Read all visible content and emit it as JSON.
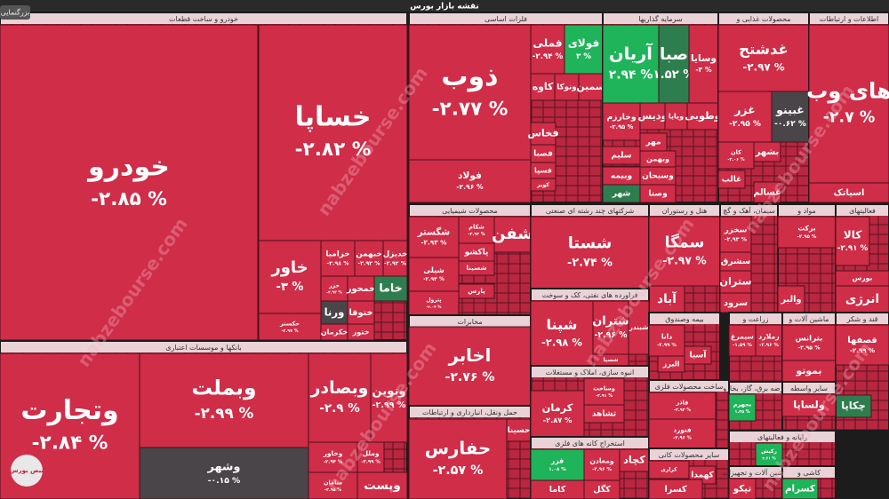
{
  "title": "نقشه بازار بورس",
  "zoom": "بزرگنمایی",
  "watermark": "nabzebourse.com",
  "logo": "نبض بورس",
  "sectors": [
    {
      "name": "خودرو و ساخت قطعات",
      "tiles": [
        {
          "name": "خودرو",
          "change": "-۲.۸۵ %"
        },
        {
          "name": "خساپا",
          "change": "-۲.۸۲ %"
        },
        {
          "name": "خاور",
          "change": "-۳ %"
        },
        {
          "name": "خکستر",
          "change": "-۲.۹۷ %"
        },
        {
          "name": "خزامیا",
          "change": "-۲.۹۸ %"
        },
        {
          "name": "خبهمن",
          "change": "-۲.۹۲ %"
        },
        {
          "name": "خدیزل",
          "change": "-۲.۹۲ %"
        },
        {
          "name": "خزر",
          "change": "-۲.۹۳ %"
        },
        {
          "name": "خمحور"
        },
        {
          "name": "خاما"
        },
        {
          "name": "ورنا"
        },
        {
          "name": "ختوقا"
        },
        {
          "name": "ختور"
        },
        {
          "name": "خکرمان"
        }
      ]
    },
    {
      "name": "بانکها و موسسات اعتباری",
      "tiles": [
        {
          "name": "وتجارت",
          "change": "-۲.۸۴ %"
        },
        {
          "name": "وبملت",
          "change": "-۲.۹۹ %"
        },
        {
          "name": "وشهر",
          "change": "-۰.۱۵ %"
        },
        {
          "name": "وبصادر",
          "change": "-۲.۹ %"
        },
        {
          "name": "ونوین",
          "change": "-۲.۹۹ %"
        },
        {
          "name": "وخاور",
          "change": "-۲.۹۴ %"
        },
        {
          "name": "سامان",
          "change": "-۲.۹۵ %"
        },
        {
          "name": "وملل",
          "change": "-۲.۹۹ %"
        },
        {
          "name": "وپست"
        }
      ]
    },
    {
      "name": "فلزات اساسی",
      "tiles": [
        {
          "name": "ذوب",
          "change": "-۲.۷۷ %"
        },
        {
          "name": "فولاد",
          "change": "-۲.۹۶ %"
        },
        {
          "name": "فملی",
          "change": "-۲.۹۴ %"
        },
        {
          "name": "فولای",
          "change": "۳ %"
        },
        {
          "name": "کاوه"
        },
        {
          "name": "ونوکا"
        },
        {
          "name": "سمین"
        },
        {
          "name": "فخاس"
        },
        {
          "name": "فصبا"
        },
        {
          "name": "فسپا"
        },
        {
          "name": "کویر"
        }
      ]
    },
    {
      "name": "سرمایه گذاریها",
      "tiles": [
        {
          "name": "آریان",
          "change": "۲.۹۴ %"
        },
        {
          "name": "صبا",
          "change": "۱.۵۲ %"
        },
        {
          "name": "وسایا",
          "change": "-۳ %"
        },
        {
          "name": "وخارزم",
          "change": "-۲.۹۵ %"
        },
        {
          "name": "ودیس"
        },
        {
          "name": "ویایا"
        },
        {
          "name": "وطوبی"
        },
        {
          "name": "مهر"
        },
        {
          "name": "سلیم"
        },
        {
          "name": "وبهمن"
        },
        {
          "name": "وبیمه"
        },
        {
          "name": "وسبحان"
        },
        {
          "name": "شهر"
        },
        {
          "name": "وصنا"
        }
      ]
    },
    {
      "name": "محصولات غذایی و",
      "tiles": [
        {
          "name": "غدشتح",
          "change": "-۲.۹۷ %"
        },
        {
          "name": "غزر",
          "change": "-۲.۹۵ %"
        },
        {
          "name": "غبینو",
          "change": "-۰.۶۲ %"
        },
        {
          "name": "کان",
          "change": "-۲.۰۶ %"
        },
        {
          "name": "بشهر"
        },
        {
          "name": "غالب"
        },
        {
          "name": "غسالم"
        }
      ]
    },
    {
      "name": "اطلاعات و ارتباطات",
      "tiles": [
        {
          "name": "های وب",
          "change": "-۲.۷ %"
        },
        {
          "name": "اسیاتک"
        }
      ]
    },
    {
      "name": "محصولات شیمیایی",
      "tiles": [
        {
          "name": "شگستر",
          "change": "-۲.۹۳ %"
        },
        {
          "name": "شکام",
          "change": "-۲.۹۳ %"
        },
        {
          "name": "شفن"
        },
        {
          "name": "پاکشو"
        },
        {
          "name": "شیلی",
          "change": "-۲.۹۴ %"
        },
        {
          "name": "شسینا"
        },
        {
          "name": "پترول",
          "change": "-۲.۰۴ %"
        },
        {
          "name": "پارس"
        }
      ]
    },
    {
      "name": "شرکتهای چند رشته ای صنعتی",
      "tiles": [
        {
          "name": "شستا",
          "change": "-۲.۷۴ %"
        }
      ]
    },
    {
      "name": "هتل و رستوران",
      "tiles": [
        {
          "name": "سمگا",
          "change": "-۲.۹۷ %"
        },
        {
          "name": "آباد"
        }
      ]
    },
    {
      "name": "سیمان، آهک و گچ",
      "tiles": [
        {
          "name": "سخزر",
          "change": "-۲.۹۳ %"
        },
        {
          "name": "سشرق"
        },
        {
          "name": "ستران"
        },
        {
          "name": "سرود"
        }
      ]
    },
    {
      "name": "مواد و",
      "tiles": [
        {
          "name": "برکت",
          "change": "-۲.۹۵ %"
        },
        {
          "name": "والبر"
        }
      ]
    },
    {
      "name": "فعالیتهای",
      "tiles": [
        {
          "name": "کالا",
          "change": "-۲.۹۱ %"
        },
        {
          "name": "بورس"
        },
        {
          "name": "انرژی"
        }
      ]
    },
    {
      "name": "مخابرات",
      "tiles": [
        {
          "name": "اخابر",
          "change": "-۲.۷۶ %"
        }
      ]
    },
    {
      "name": "حمل ونقل، انبارداری و ارتباطات",
      "tiles": [
        {
          "name": "حفارس",
          "change": "-۲.۵۷ %"
        },
        {
          "name": "حسینا"
        }
      ]
    },
    {
      "name": "فراورده های نفتی، کک و سوخت",
      "tiles": [
        {
          "name": "شپنا",
          "change": "-۲.۹۸ %"
        },
        {
          "name": "شتران",
          "change": "-۲.۹۶ %"
        },
        {
          "name": "شبندر"
        },
        {
          "name": "شسپا"
        }
      ]
    },
    {
      "name": "انبوه سازی، املاک و مستغلات",
      "tiles": [
        {
          "name": "کرمان",
          "change": "-۲.۸۷ %"
        },
        {
          "name": "وساخت",
          "change": "-۲.۹۱ %"
        },
        {
          "name": "ثشاهد"
        }
      ]
    },
    {
      "name": "استخراج کانه های فلزی",
      "tiles": [
        {
          "name": "فزر",
          "change": "۱.۰۸ %"
        },
        {
          "name": "ومعادن",
          "change": "-۲.۹۶ %"
        },
        {
          "name": "کچاد"
        },
        {
          "name": "کاما"
        },
        {
          "name": "کگل"
        }
      ]
    },
    {
      "name": "بیمه وصندوق",
      "tiles": [
        {
          "name": "دانا",
          "change": "-۲.۹۹ %"
        },
        {
          "name": "آسیا"
        },
        {
          "name": "البرز"
        }
      ]
    },
    {
      "name": "ساخت محصولات فلزی",
      "tiles": [
        {
          "name": "فاذر",
          "change": "-۲.۹۳ %"
        },
        {
          "name": "فنورد",
          "change": "-۲.۹۶ %"
        }
      ]
    },
    {
      "name": "سایر محصولات کانی",
      "tiles": [
        {
          "name": "کرازی",
          "change": "-۲.۹۹ %"
        },
        {
          "name": "کهمدا"
        },
        {
          "name": "کسرا"
        }
      ]
    },
    {
      "name": "زراعت و",
      "tiles": [
        {
          "name": "سیمرغ",
          "change": "-۱.۵۹ %"
        },
        {
          "name": "زملارد",
          "change": "-۲.۹۶ %"
        }
      ]
    },
    {
      "name": "ماشین آلات و",
      "tiles": [
        {
          "name": "بترانس",
          "change": "-۲.۹۵ %"
        },
        {
          "name": "بموتو"
        }
      ]
    },
    {
      "name": "قند و شکر",
      "tiles": [
        {
          "name": "قصفها",
          "change": "-۲.۹۹ %"
        },
        {
          "name": "چکاپا"
        }
      ]
    },
    {
      "name": "عرضه برق، گاز، بخارو",
      "tiles": [
        {
          "name": "بجهرم",
          "change": "۱.۳۵ %"
        }
      ]
    },
    {
      "name": "سایر واسطه",
      "tiles": [
        {
          "name": "ولساپا"
        }
      ]
    },
    {
      "name": "رایانه و فعالیتهای",
      "tiles": [
        {
          "name": "رکیش",
          "change": "۲.۶۱ %"
        }
      ]
    },
    {
      "name": "ماشین آلات و تجهیزات",
      "tiles": [
        {
          "name": "تپکو"
        }
      ]
    },
    {
      "name": "کاشی و",
      "tiles": [
        {
          "name": "کسرام"
        }
      ]
    }
  ],
  "colors": {
    "down": "#cf2d48",
    "up": "#1fb35a",
    "mild": "#2e7d4f",
    "flat": "#4a4548"
  }
}
